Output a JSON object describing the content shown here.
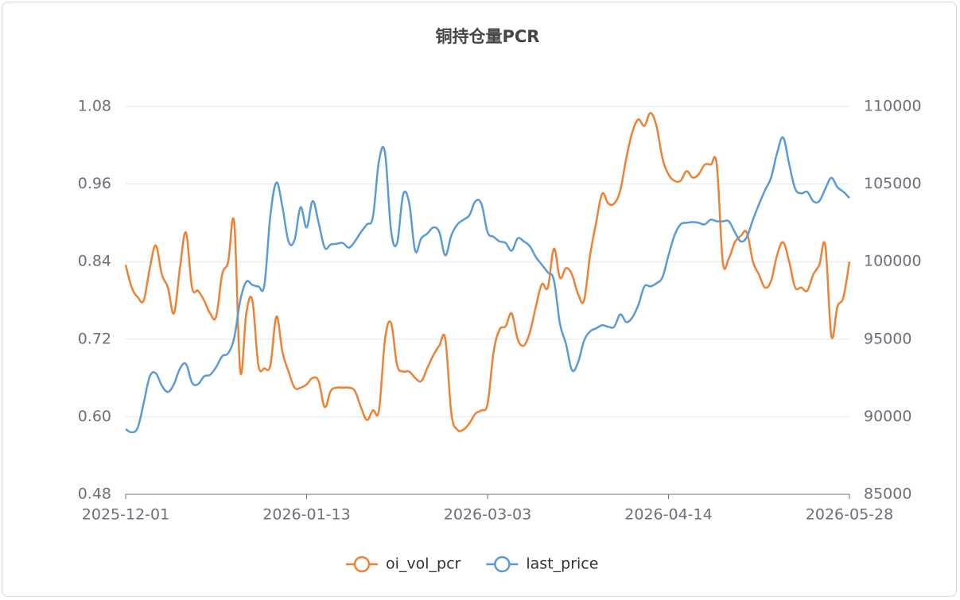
{
  "chart_data": {
    "type": "line",
    "title": "铜持仓量PCR",
    "categories": [
      "2025-12-01",
      null,
      null,
      null,
      null,
      null,
      null,
      null,
      null,
      null,
      null,
      null,
      null,
      null,
      null,
      null,
      null,
      null,
      null,
      null,
      null,
      null,
      null,
      null,
      null,
      null,
      null,
      null,
      null,
      null,
      "2026-01-13",
      null,
      null,
      null,
      null,
      null,
      null,
      null,
      null,
      null,
      null,
      null,
      null,
      null,
      null,
      null,
      null,
      null,
      null,
      null,
      null,
      null,
      null,
      null,
      null,
      null,
      null,
      null,
      null,
      null,
      "2026-03-03",
      null,
      null,
      null,
      null,
      null,
      null,
      null,
      null,
      null,
      null,
      null,
      null,
      null,
      null,
      null,
      null,
      null,
      null,
      null,
      null,
      null,
      null,
      null,
      null,
      null,
      null,
      null,
      null,
      null,
      "2026-04-14",
      null,
      null,
      null,
      null,
      null,
      null,
      null,
      null,
      null,
      null,
      null,
      null,
      null,
      null,
      null,
      null,
      null,
      null,
      null,
      null,
      null,
      null,
      null,
      null,
      null,
      null,
      null,
      null,
      null,
      "2026-05-28"
    ],
    "series": [
      {
        "name": "oi_vol_pcr",
        "color": "#ee8234",
        "axis": "y",
        "values": [
          0.835,
          0.8,
          0.785,
          0.78,
          0.83,
          0.865,
          0.82,
          0.8,
          0.76,
          0.83,
          0.885,
          0.8,
          0.795,
          0.78,
          0.76,
          0.755,
          0.82,
          0.84,
          0.9,
          0.67,
          0.76,
          0.78,
          0.68,
          0.675,
          0.68,
          0.755,
          0.7,
          0.67,
          0.645,
          0.645,
          0.65,
          0.66,
          0.655,
          0.615,
          0.64,
          0.645,
          0.645,
          0.645,
          0.64,
          0.615,
          0.595,
          0.61,
          0.61,
          0.72,
          0.745,
          0.68,
          0.67,
          0.67,
          0.66,
          0.655,
          0.675,
          0.695,
          0.71,
          0.72,
          0.605,
          0.58,
          0.58,
          0.59,
          0.605,
          0.61,
          0.62,
          0.7,
          0.735,
          0.74,
          0.76,
          0.72,
          0.71,
          0.73,
          0.77,
          0.805,
          0.8,
          0.86,
          0.815,
          0.83,
          0.82,
          0.79,
          0.78,
          0.85,
          0.9,
          0.945,
          0.93,
          0.93,
          0.95,
          1.0,
          1.04,
          1.06,
          1.05,
          1.07,
          1.05,
          1.0,
          0.975,
          0.965,
          0.965,
          0.98,
          0.97,
          0.975,
          0.99,
          0.99,
          0.99,
          0.84,
          0.845,
          0.87,
          0.88,
          0.885,
          0.84,
          0.82,
          0.8,
          0.81,
          0.85,
          0.87,
          0.84,
          0.8,
          0.8,
          0.795,
          0.82,
          0.835,
          0.865,
          0.725,
          0.77,
          0.785,
          0.84
        ]
      },
      {
        "name": "last_price",
        "color": "#5b9bd5",
        "axis": "y2",
        "values": [
          89200,
          89000,
          89300,
          90900,
          92600,
          92800,
          92000,
          91600,
          92100,
          93100,
          93400,
          92200,
          92100,
          92600,
          92700,
          93200,
          93900,
          94100,
          95100,
          97500,
          98700,
          98500,
          98400,
          98500,
          103000,
          105100,
          103500,
          101300,
          101400,
          103500,
          102200,
          103900,
          102500,
          100900,
          101100,
          101150,
          101200,
          100900,
          101300,
          101900,
          102400,
          102900,
          106500,
          107000,
          102000,
          101200,
          104300,
          103800,
          100700,
          101500,
          101800,
          102200,
          101900,
          100400,
          101700,
          102400,
          102700,
          103000,
          103900,
          103700,
          101900,
          101600,
          101300,
          101200,
          100700,
          101500,
          101300,
          101000,
          100300,
          99800,
          99300,
          98800,
          96000,
          94700,
          93000,
          93500,
          94900,
          95500,
          95700,
          95900,
          95800,
          95800,
          96600,
          96100,
          96400,
          97200,
          98400,
          98400,
          98600,
          99000,
          100400,
          101700,
          102400,
          102500,
          102550,
          102500,
          102400,
          102700,
          102600,
          102600,
          102600,
          101900,
          101300,
          101600,
          102700,
          103700,
          104600,
          105400,
          107000,
          108000,
          106300,
          104700,
          104400,
          104500,
          103900,
          103900,
          104700,
          105400,
          104800,
          104500,
          104100
        ]
      }
    ],
    "ylim": [
      0.48,
      1.08
    ],
    "yticks": [
      0.48,
      {
        "value": 0.6,
        "label": "0.60"
      },
      0.72,
      0.84,
      0.96,
      1.08
    ],
    "y2lim": [
      85000,
      110000
    ],
    "y2ticks": [
      85000,
      90000,
      95000,
      100000,
      105000,
      110000
    ],
    "grid": true,
    "legend": "bottom",
    "smooth": true
  }
}
